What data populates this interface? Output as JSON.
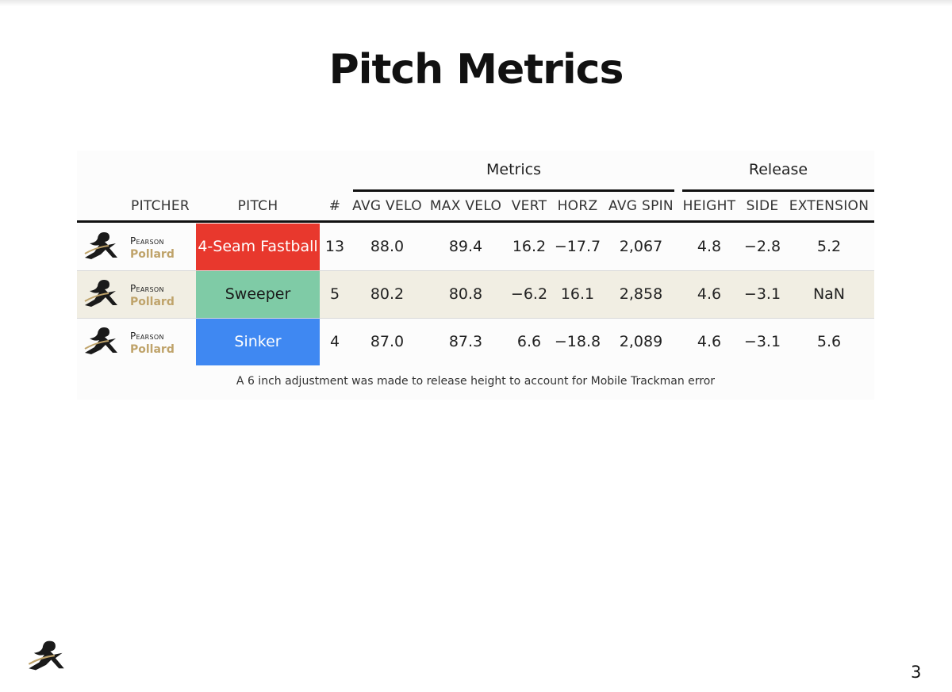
{
  "title": "Pitch Metrics",
  "groups": {
    "metrics": "Metrics",
    "release": "Release"
  },
  "headers": {
    "pitcher": "PITCHER",
    "pitch": "PITCH",
    "count": "#",
    "avg_velo": "AVG VELO",
    "max_velo": "MAX VELO",
    "vert": "VERT",
    "horz": "HORZ",
    "avg_spin": "AVG SPIN",
    "height": "HEIGHT",
    "side": "SIDE",
    "extension": "EXTENSION"
  },
  "rows": [
    {
      "first": "Pearson",
      "last": "Pollard",
      "pitch": "4-Seam Fastball",
      "pitch_color": "#e8382d",
      "pitch_text_color": "#ffffff",
      "count": "13",
      "avg_velo": "88.0",
      "max_velo": "89.4",
      "vert": "16.2",
      "horz": "−17.7",
      "avg_spin": "2,067",
      "height": "4.8",
      "side": "−2.8",
      "extension": "5.2"
    },
    {
      "first": "Pearson",
      "last": "Pollard",
      "pitch": "Sweeper",
      "pitch_color": "#7fcba6",
      "pitch_text_color": "#1a1a1a",
      "count": "5",
      "avg_velo": "80.2",
      "max_velo": "80.8",
      "vert": "−6.2",
      "horz": "16.1",
      "avg_spin": "2,858",
      "height": "4.6",
      "side": "−3.1",
      "extension": "NaN"
    },
    {
      "first": "Pearson",
      "last": "Pollard",
      "pitch": "Sinker",
      "pitch_color": "#3f88f2",
      "pitch_text_color": "#ffffff",
      "count": "4",
      "avg_velo": "87.0",
      "max_velo": "87.3",
      "vert": "6.6",
      "horz": "−18.8",
      "avg_spin": "2,089",
      "height": "4.6",
      "side": "−3.1",
      "extension": "5.6"
    }
  ],
  "footnote": "A 6 inch adjustment was made to release height to account for Mobile Trackman error",
  "page_number": "3",
  "icons": {
    "team_logo": "pitcher-silhouette-logo"
  }
}
